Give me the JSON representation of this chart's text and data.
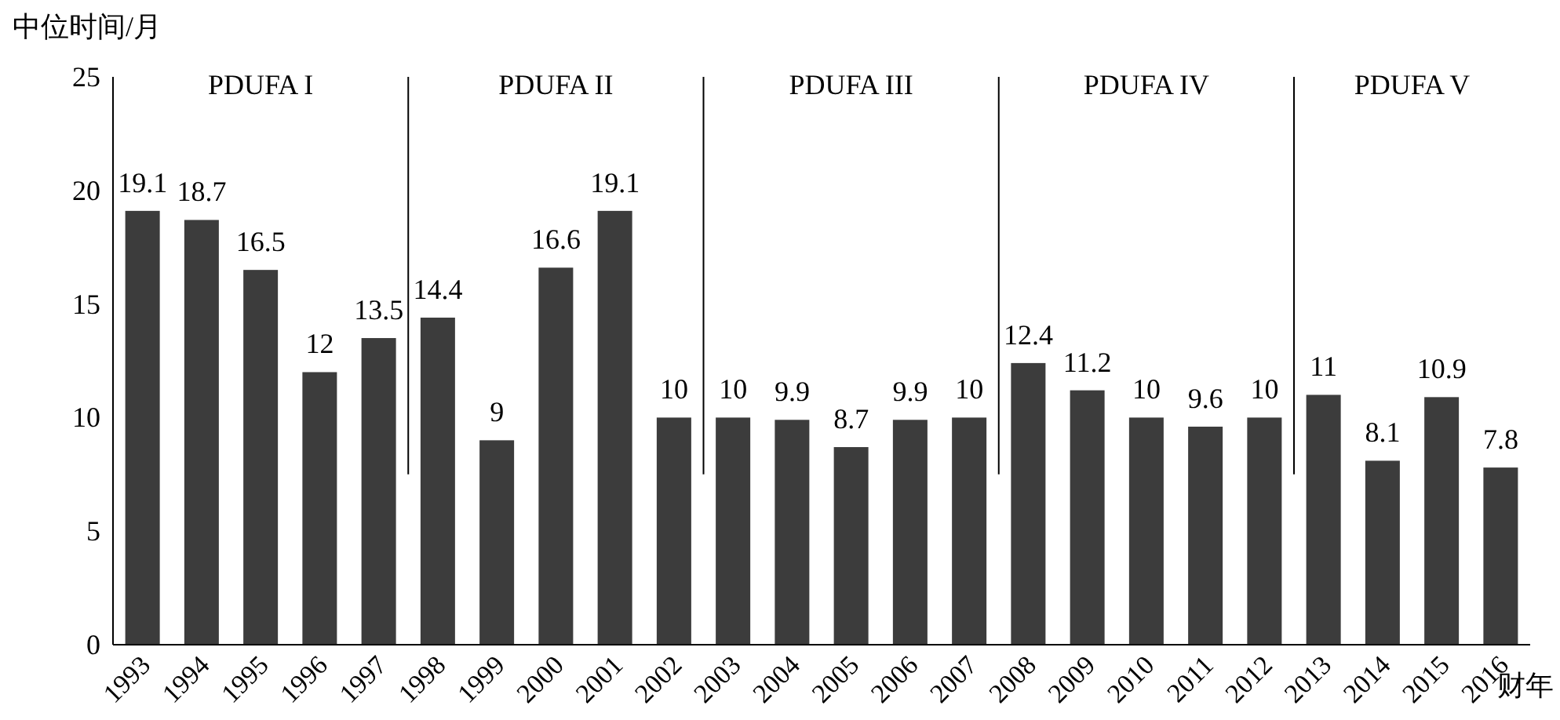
{
  "chart_data": {
    "type": "bar",
    "ylabel": "中位时间/月",
    "xlabel": "财年",
    "categories": [
      "1993",
      "1994",
      "1995",
      "1996",
      "1997",
      "1998",
      "1999",
      "2000",
      "2001",
      "2002",
      "2003",
      "2004",
      "2005",
      "2006",
      "2007",
      "2008",
      "2009",
      "2010",
      "2011",
      "2012",
      "2013",
      "2014",
      "2015",
      "2016"
    ],
    "values": [
      19.1,
      18.7,
      16.5,
      12,
      13.5,
      14.4,
      9,
      16.6,
      19.1,
      10,
      10,
      9.9,
      8.7,
      9.9,
      10,
      12.4,
      11.2,
      10,
      9.6,
      10,
      11,
      8.1,
      10.9,
      7.8
    ],
    "color": "#3c3c3c",
    "ylim": [
      0,
      25
    ],
    "yticks": [
      0,
      5,
      10,
      15,
      20,
      25
    ],
    "data_labels": true,
    "grid": false,
    "annotations": [
      "PDUFA I",
      "PDUFA II",
      "PDUFA III",
      "PDUFA IV",
      "PDUFA V"
    ]
  }
}
